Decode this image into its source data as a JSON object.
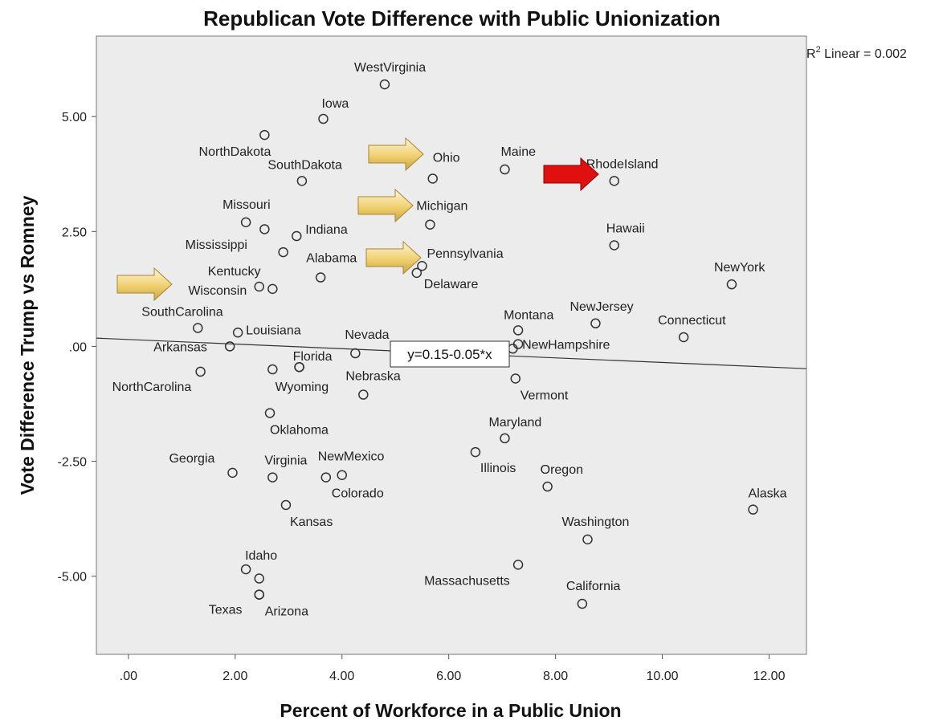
{
  "chart_data": {
    "type": "scatter",
    "title": "Republican Vote Difference with Public Unionization",
    "xlabel": "Percent of Workforce in a Public Union",
    "ylabel": "Vote Difference Trump vs Romney",
    "xlim": [
      -0.6,
      12.7
    ],
    "ylim": [
      -6.7,
      6.75
    ],
    "xticks": [
      ".00",
      "2.00",
      "4.00",
      "6.00",
      "8.00",
      "10.00",
      "12.00"
    ],
    "xtick_values": [
      0,
      2,
      4,
      6,
      8,
      10,
      12
    ],
    "yticks": [
      "5.00",
      "2.50",
      ".00",
      "-2.50",
      "-5.00"
    ],
    "ytick_values": [
      5,
      2.5,
      0,
      -2.5,
      -5
    ],
    "grid": false,
    "background": "#ececec",
    "r2_prefix": "R",
    "r2_sup": "2",
    "r2_text": " Linear = 0.002",
    "fit_equation": "y=0.15-0.05*x",
    "fit_line": {
      "intercept": 0.15,
      "slope": -0.05
    },
    "arrow_colors": {
      "highlight": "#e01010",
      "default": "#f0d070"
    },
    "points": [
      {
        "label": "WestVirginia",
        "x": 4.8,
        "y": 5.7
      },
      {
        "label": "Iowa",
        "x": 3.65,
        "y": 4.95
      },
      {
        "label": "NorthDakota",
        "x": 2.55,
        "y": 4.6
      },
      {
        "label": "SouthDakota",
        "x": 3.25,
        "y": 3.6
      },
      {
        "label": "Ohio",
        "x": 5.7,
        "y": 3.65
      },
      {
        "label": "Maine",
        "x": 7.05,
        "y": 3.85
      },
      {
        "label": "RhodeIsland",
        "x": 9.1,
        "y": 3.6
      },
      {
        "label": "Missouri",
        "x": 2.2,
        "y": 2.7
      },
      {
        "label": "",
        "x": 2.55,
        "y": 2.55
      },
      {
        "label": "Indiana",
        "x": 3.15,
        "y": 2.4
      },
      {
        "label": "Michigan",
        "x": 5.65,
        "y": 2.65
      },
      {
        "label": "Hawaii",
        "x": 9.1,
        "y": 2.2
      },
      {
        "label": "Mississippi",
        "x": 2.9,
        "y": 2.05
      },
      {
        "label": "Pennsylvania",
        "x": 5.5,
        "y": 1.75
      },
      {
        "label": "Delaware",
        "x": 5.4,
        "y": 1.6
      },
      {
        "label": "Alabama",
        "x": 3.6,
        "y": 1.5
      },
      {
        "label": "Kentucky",
        "x": 2.45,
        "y": 1.3
      },
      {
        "label": "Wisconsin",
        "x": 2.7,
        "y": 1.25
      },
      {
        "label": "NewYork",
        "x": 11.3,
        "y": 1.35
      },
      {
        "label": "Montana",
        "x": 7.3,
        "y": 0.35
      },
      {
        "label": "NewJersey",
        "x": 8.75,
        "y": 0.5
      },
      {
        "label": "Connecticut",
        "x": 10.4,
        "y": 0.2
      },
      {
        "label": "SouthCarolina",
        "x": 1.3,
        "y": 0.4
      },
      {
        "label": "Louisiana",
        "x": 2.05,
        "y": 0.3
      },
      {
        "label": "Arkansas",
        "x": 1.9,
        "y": 0.0
      },
      {
        "label": "NewHampshire",
        "x": 7.3,
        "y": 0.05
      },
      {
        "label": "",
        "x": 7.2,
        "y": -0.05
      },
      {
        "label": "Nevada",
        "x": 4.25,
        "y": -0.15
      },
      {
        "label": "Florida",
        "x": 3.2,
        "y": -0.45
      },
      {
        "label": "",
        "x": 2.7,
        "y": -0.5
      },
      {
        "label": "NorthCarolina",
        "x": 1.35,
        "y": -0.55
      },
      {
        "label": "Wyoming",
        "x": 3.2,
        "y": -0.45
      },
      {
        "label": "Vermont",
        "x": 7.25,
        "y": -0.7
      },
      {
        "label": "Nebraska",
        "x": 4.4,
        "y": -1.05
      },
      {
        "label": "Oklahoma",
        "x": 2.65,
        "y": -1.45
      },
      {
        "label": "Maryland",
        "x": 7.05,
        "y": -2.0
      },
      {
        "label": "Illinois",
        "x": 6.5,
        "y": -2.3
      },
      {
        "label": "Georgia",
        "x": 1.95,
        "y": -2.75
      },
      {
        "label": "Virginia",
        "x": 2.7,
        "y": -2.85
      },
      {
        "label": "NewMexico",
        "x": 4.0,
        "y": -2.8
      },
      {
        "label": "Colorado",
        "x": 3.7,
        "y": -2.85
      },
      {
        "label": "Oregon",
        "x": 7.85,
        "y": -3.05
      },
      {
        "label": "Kansas",
        "x": 2.95,
        "y": -3.45
      },
      {
        "label": "Alaska",
        "x": 11.7,
        "y": -3.55
      },
      {
        "label": "Washington",
        "x": 8.6,
        "y": -4.2
      },
      {
        "label": "Idaho",
        "x": 2.2,
        "y": -4.85
      },
      {
        "label": "",
        "x": 2.45,
        "y": -5.05
      },
      {
        "label": "Massachusetts",
        "x": 7.3,
        "y": -4.75
      },
      {
        "label": "Texas",
        "x": 2.45,
        "y": -5.4
      },
      {
        "label": "Arizona",
        "x": 2.45,
        "y": -5.4
      },
      {
        "label": "California",
        "x": 8.5,
        "y": -5.6
      }
    ],
    "arrows": [
      {
        "target": "Ohio",
        "color": "default"
      },
      {
        "target": "Michigan",
        "color": "default"
      },
      {
        "target": "Pennsylvania",
        "color": "default"
      },
      {
        "target": "Wisconsin",
        "color": "default"
      },
      {
        "target": "RhodeIsland",
        "color": "highlight"
      }
    ]
  }
}
